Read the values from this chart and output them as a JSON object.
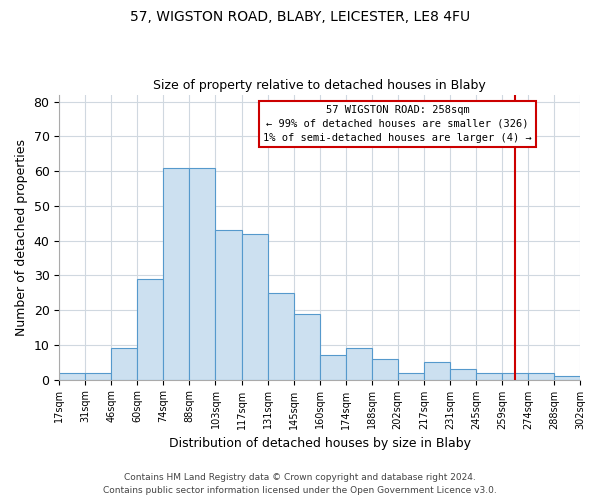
{
  "title": "57, WIGSTON ROAD, BLABY, LEICESTER, LE8 4FU",
  "subtitle": "Size of property relative to detached houses in Blaby",
  "xlabel": "Distribution of detached houses by size in Blaby",
  "ylabel": "Number of detached properties",
  "bar_labels": [
    "17sqm",
    "31sqm",
    "46sqm",
    "60sqm",
    "74sqm",
    "88sqm",
    "103sqm",
    "117sqm",
    "131sqm",
    "145sqm",
    "160sqm",
    "174sqm",
    "188sqm",
    "202sqm",
    "217sqm",
    "231sqm",
    "245sqm",
    "259sqm",
    "274sqm",
    "288sqm",
    "302sqm"
  ],
  "bar_heights": [
    2,
    2,
    9,
    29,
    61,
    61,
    43,
    42,
    25,
    19,
    7,
    9,
    6,
    2,
    5,
    3,
    2,
    2,
    2,
    1
  ],
  "bar_color": "#cce0f0",
  "bar_edge_color": "#5599cc",
  "grid_color": "#d0d8e0",
  "vline_x": 17.5,
  "vline_color": "#cc0000",
  "annotation_title": "57 WIGSTON ROAD: 258sqm",
  "annotation_line1": "← 99% of detached houses are smaller (326)",
  "annotation_line2": "1% of semi-detached houses are larger (4) →",
  "annotation_box_color": "#cc0000",
  "ylim": [
    0,
    82
  ],
  "yticks": [
    0,
    10,
    20,
    30,
    40,
    50,
    60,
    70,
    80
  ],
  "footer1": "Contains HM Land Registry data © Crown copyright and database right 2024.",
  "footer2": "Contains public sector information licensed under the Open Government Licence v3.0."
}
